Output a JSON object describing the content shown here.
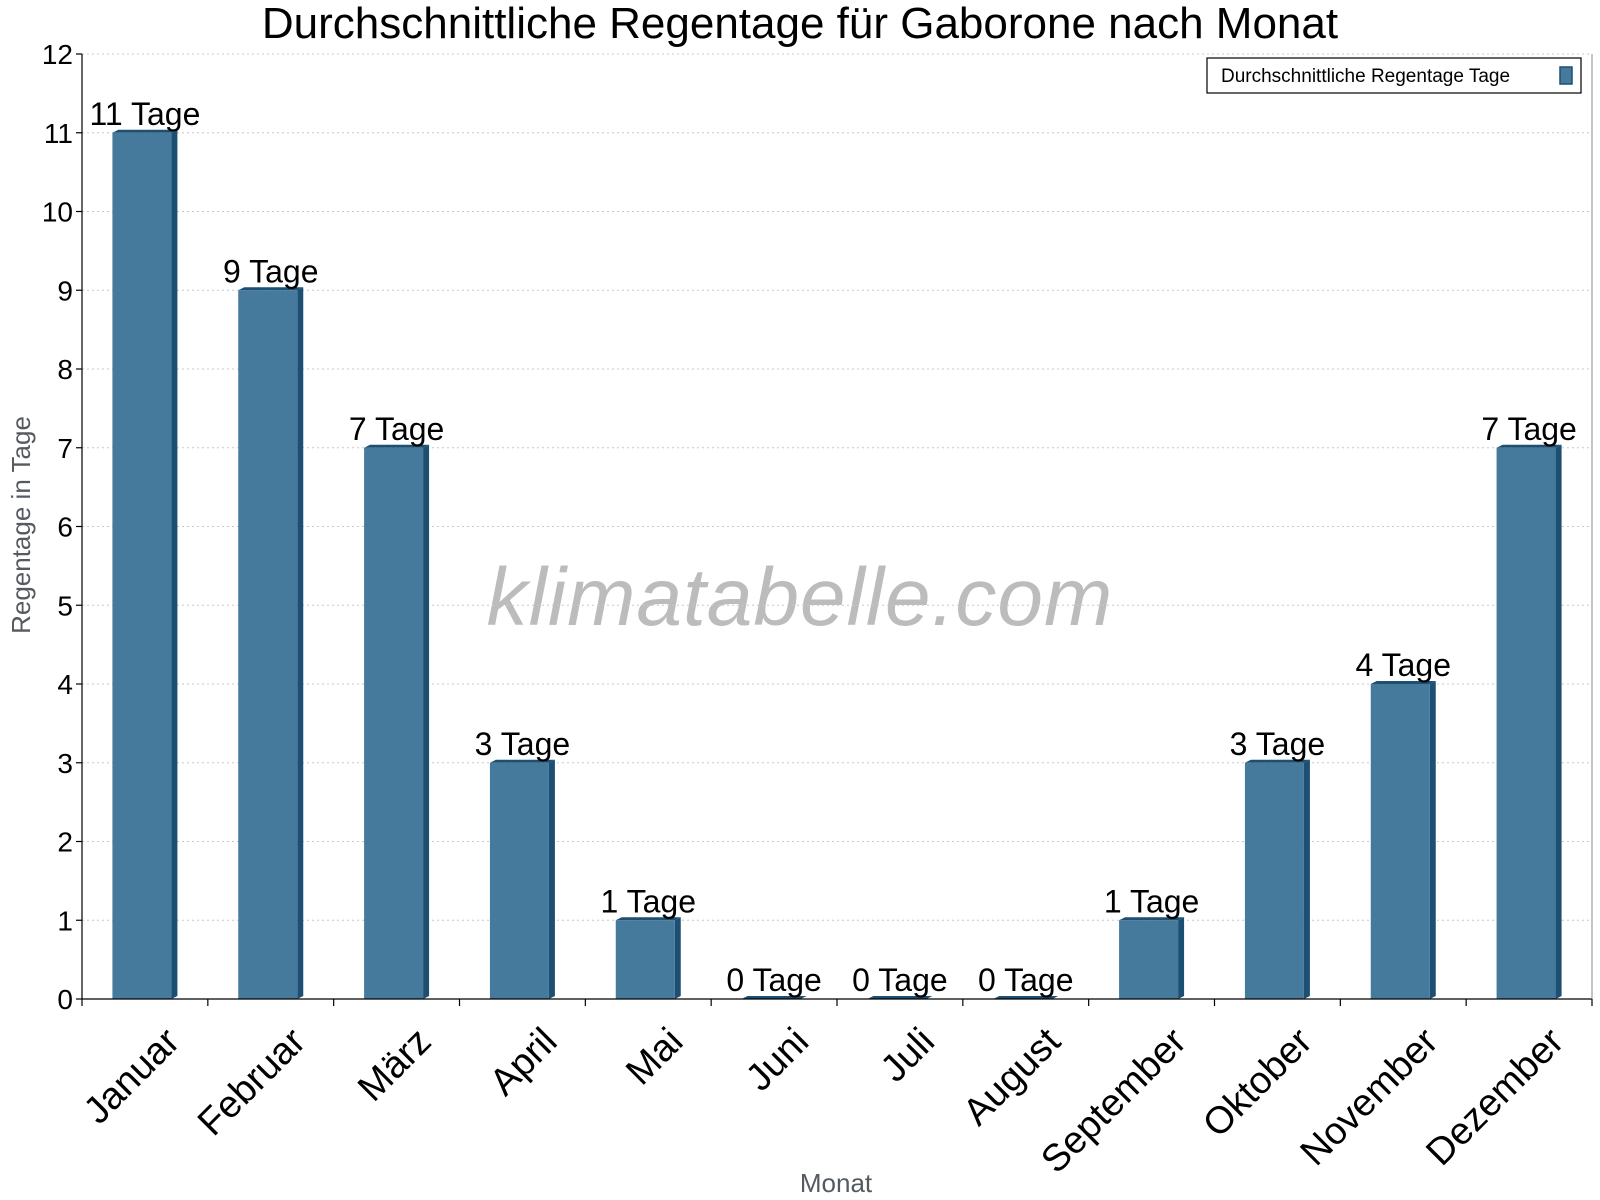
{
  "chart_data": {
    "type": "bar",
    "title": "Durchschnittliche Regentage für Gaborone nach Monat",
    "xlabel": "Monat",
    "ylabel": "Regentage in Tage",
    "categories": [
      "Januar",
      "Februar",
      "März",
      "April",
      "Mai",
      "Juni",
      "Juli",
      "August",
      "September",
      "Oktober",
      "November",
      "Dezember"
    ],
    "series": [
      {
        "name": "Durchschnittliche Regentage Tage",
        "values": [
          11,
          9,
          7,
          3,
          1,
          0,
          0,
          0,
          1,
          3,
          4,
          7
        ],
        "labels": [
          "11 Tage",
          "9 Tage",
          "7 Tage",
          "3 Tage",
          "1 Tage",
          "0 Tage",
          "0 Tage",
          "0 Tage",
          "1 Tage",
          "3 Tage",
          "4 Tage",
          "7 Tage"
        ],
        "color": "#467a9c"
      }
    ],
    "ylim": [
      0,
      12
    ],
    "yticks": [
      "0",
      "1",
      "2",
      "3",
      "4",
      "5",
      "6",
      "7",
      "8",
      "9",
      "10",
      "11",
      "12"
    ],
    "grid": true,
    "legend_position": "top-right",
    "watermark": "klimatabelle.com"
  },
  "colors": {
    "bar_front": "#467a9c",
    "bar_side": "#1d4f72",
    "bar_top": "#1d4f72",
    "grid": "#c8c8c8",
    "axis": "#000000"
  }
}
